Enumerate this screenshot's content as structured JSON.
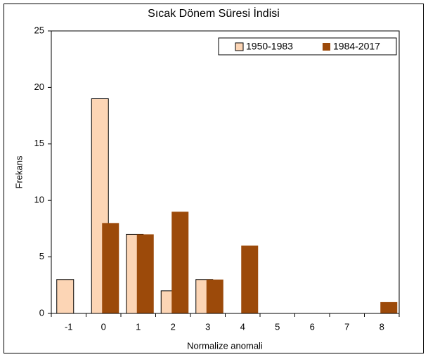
{
  "chart_data": {
    "type": "bar",
    "title": "Sıcak Dönem Süresi İndisi",
    "x_label": "Normalize anomali",
    "y_label": "Frekans",
    "categories": [
      "-1",
      "0",
      "1",
      "2",
      "3",
      "4",
      "5",
      "6",
      "7",
      "8"
    ],
    "series": [
      {
        "name": "1950-1983",
        "color": "#fcd5b5",
        "values": [
          3,
          19,
          7,
          2,
          3,
          0,
          0,
          0,
          0,
          0
        ]
      },
      {
        "name": "1984-2017",
        "color": "#9c4a0a",
        "values": [
          0,
          8,
          7,
          9,
          3,
          6,
          0,
          0,
          0,
          1
        ]
      }
    ],
    "ylim": [
      0,
      25
    ],
    "yticks": [
      0,
      5,
      10,
      15,
      20,
      25
    ],
    "grid": false,
    "legend": "top-right"
  }
}
